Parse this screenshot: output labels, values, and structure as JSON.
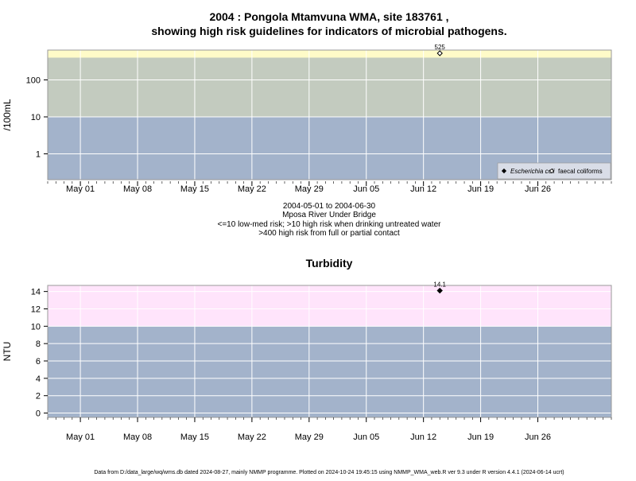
{
  "top_title": [
    "2004 : Pongola Mtamvuna WMA, site 183761 ,",
    "showing high risk guidelines for indicators of microbial pathogens."
  ],
  "top_caption": [
    "2004-05-01 to 2004-06-30",
    "Mposa River Under Bridge",
    "<=10 low-med risk; >10 high risk when drinking untreated water",
    ">400 high risk from full or partial contact"
  ],
  "bottom_title": "Turbidity",
  "footer": "Data from D:/data_large/wq/wms.db dated 2024-08-27, mainly NMMP programme. Plotted on 2024-10-24 19:45:15 using NMMP_WMA_web.R ver 9.3 under R version 4.4.1 (2024-06-14 ucrt)",
  "colors": {
    "low_band": "#a3b3cb",
    "mid_band": "#c3cbbf",
    "high_band_top": "#fffbc8",
    "turbidity_high": "#ffe4fb",
    "grid": "#ffffff",
    "frame": "#9a9a9a"
  },
  "chart_data": [
    {
      "type": "scatter",
      "ylabel": "/100mL",
      "y_scale": "log",
      "ylim": [
        0.2,
        640
      ],
      "xlim": [
        "2004-04-27",
        "2004-07-05"
      ],
      "y_ticks": [
        1,
        10,
        100
      ],
      "y_tick_labels": [
        "1",
        "10",
        "100"
      ],
      "x_ticks": [
        "2004-05-01",
        "2004-05-08",
        "2004-05-15",
        "2004-05-22",
        "2004-05-29",
        "2004-06-05",
        "2004-06-12",
        "2004-06-19",
        "2004-06-26"
      ],
      "x_tick_labels": [
        "May 01",
        "May 08",
        "May 15",
        "May 22",
        "May 29",
        "Jun 05",
        "Jun 12",
        "Jun 19",
        "Jun 26"
      ],
      "bands": [
        {
          "from": 0.2,
          "to": 10,
          "color": "#a3b3cb"
        },
        {
          "from": 10,
          "to": 400,
          "color": "#c3cbbf"
        },
        {
          "from": 400,
          "to": 640,
          "color": "#fffbc8"
        }
      ],
      "grid": true,
      "legend_position": "bottom-right",
      "series": [
        {
          "name": "Escherichia coli",
          "marker": "filled-diamond",
          "points": []
        },
        {
          "name": "faecal coliforms",
          "marker": "open-diamond",
          "points": [
            {
              "x": "2004-06-14",
              "y": 525,
              "label": "525"
            }
          ]
        }
      ]
    },
    {
      "type": "scatter",
      "ylabel": "NTU",
      "ylim": [
        -0.5,
        14.7
      ],
      "xlim": [
        "2004-04-27",
        "2004-07-05"
      ],
      "y_ticks": [
        0,
        2,
        4,
        6,
        8,
        10,
        12,
        14
      ],
      "y_tick_labels": [
        "0",
        "2",
        "4",
        "6",
        "8",
        "10",
        "12",
        "14"
      ],
      "x_ticks": [
        "2004-05-01",
        "2004-05-08",
        "2004-05-15",
        "2004-05-22",
        "2004-05-29",
        "2004-06-05",
        "2004-06-12",
        "2004-06-19",
        "2004-06-26"
      ],
      "x_tick_labels": [
        "May 01",
        "May 08",
        "May 15",
        "May 22",
        "May 29",
        "Jun 05",
        "Jun 12",
        "Jun 19",
        "Jun 26"
      ],
      "bands": [
        {
          "from": -0.5,
          "to": 10,
          "color": "#a3b3cb"
        },
        {
          "from": 10,
          "to": 14.7,
          "color": "#ffe4fb"
        }
      ],
      "grid": true,
      "series": [
        {
          "marker": "filled-diamond",
          "points": [
            {
              "x": "2004-06-14",
              "y": 14.1,
              "label": "14.1"
            }
          ]
        }
      ]
    }
  ]
}
